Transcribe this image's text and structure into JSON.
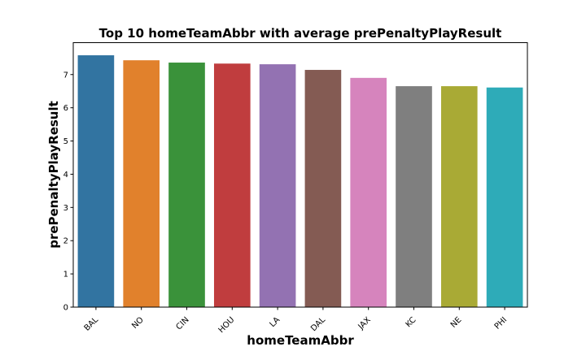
{
  "chart_data": {
    "type": "bar",
    "title": "Top 10 homeTeamAbbr with average prePenaltyPlayResult",
    "xlabel": "homeTeamAbbr",
    "ylabel": "prePenaltyPlayResult",
    "categories": [
      "BAL",
      "NO",
      "CIN",
      "HOU",
      "LA",
      "DAL",
      "JAX",
      "KC",
      "NE",
      "PHI"
    ],
    "values": [
      7.58,
      7.43,
      7.36,
      7.33,
      7.31,
      7.14,
      6.9,
      6.65,
      6.65,
      6.61
    ],
    "colors": [
      "#3274a1",
      "#e1812c",
      "#3a923a",
      "#c03d3e",
      "#9372b2",
      "#845b53",
      "#d684bd",
      "#7f7f7f",
      "#a9aa35",
      "#2eabb8"
    ],
    "ylim": [
      0,
      7.96
    ],
    "yticks": [
      "0",
      "1",
      "2",
      "3",
      "4",
      "5",
      "6",
      "7"
    ],
    "grid": false,
    "legend": "none"
  }
}
